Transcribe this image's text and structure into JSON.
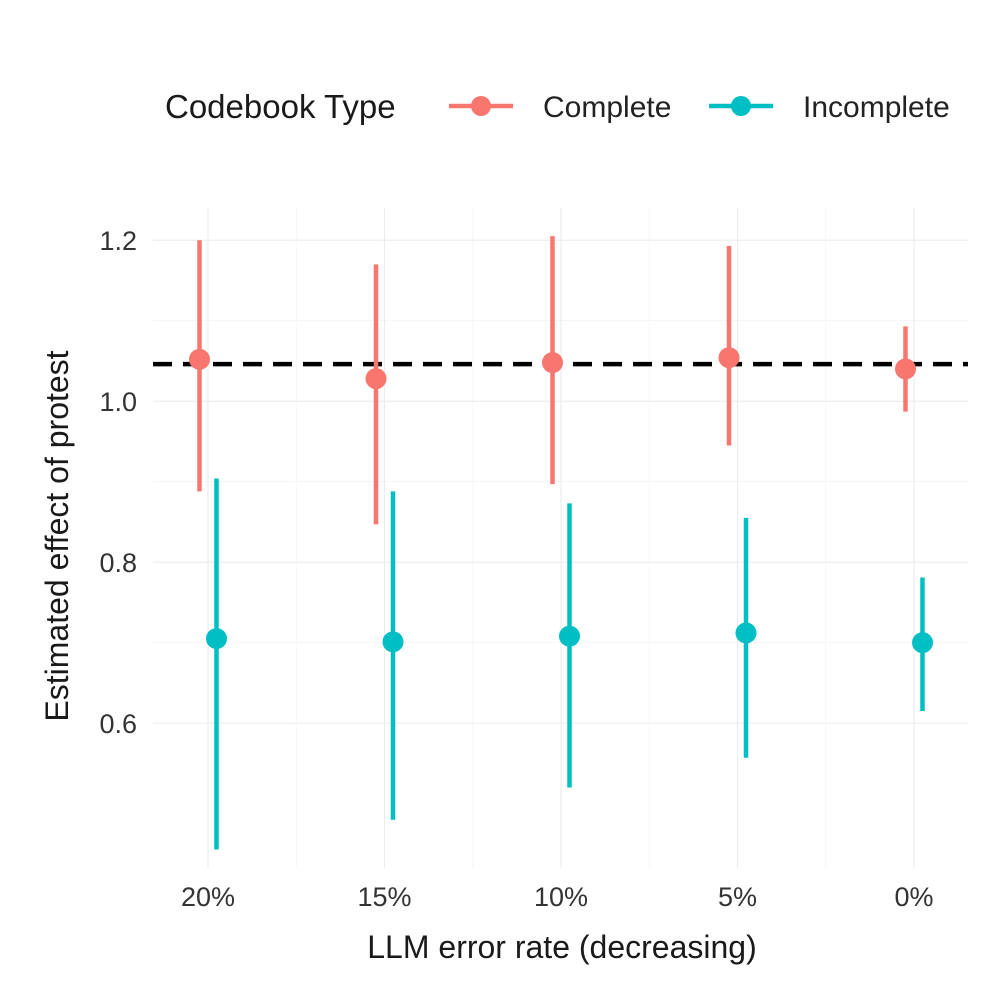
{
  "chart_data": {
    "type": "pointrange",
    "xlabel": "LLM error rate (decreasing)",
    "ylabel": "Estimated effect of protest",
    "categories": [
      "20%",
      "15%",
      "10%",
      "5%",
      "0%"
    ],
    "ylim": [
      0.42,
      1.24
    ],
    "yticks": [
      0.6,
      0.8,
      1.0,
      1.2
    ],
    "ytick_labels": [
      "0.6",
      "0.8",
      "1.0",
      "1.2"
    ],
    "reference_line": {
      "y": 1.046,
      "style": "dashed",
      "color": "#000000"
    },
    "legend": {
      "title": "Codebook Type",
      "position": "top"
    },
    "series": [
      {
        "name": "Complete",
        "color": "#F8766D",
        "estimates": [
          1.052,
          1.028,
          1.048,
          1.054,
          1.04
        ],
        "lower": [
          0.888,
          0.847,
          0.897,
          0.945,
          0.987
        ],
        "upper": [
          1.2,
          1.17,
          1.205,
          1.193,
          1.093
        ]
      },
      {
        "name": "Incomplete",
        "color": "#00BFC4",
        "estimates": [
          0.705,
          0.701,
          0.708,
          0.712,
          0.7
        ],
        "lower": [
          0.443,
          0.48,
          0.52,
          0.557,
          0.615
        ],
        "upper": [
          0.904,
          0.888,
          0.873,
          0.855,
          0.781
        ]
      }
    ]
  }
}
